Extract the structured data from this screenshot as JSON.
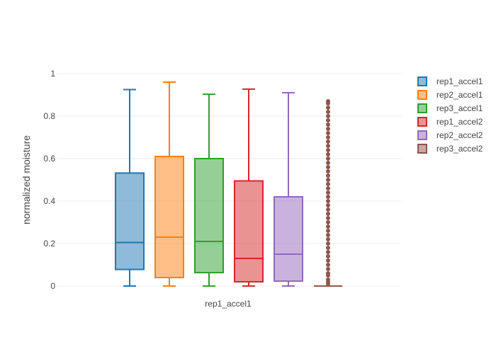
{
  "chart_data": {
    "type": "box",
    "title": "",
    "xlabel": "",
    "ylabel": "normalized moisture",
    "x_category": "rep1_accel1",
    "ylim": [
      0,
      1
    ],
    "y_ticks": [
      0,
      0.2,
      0.4,
      0.6,
      0.8,
      1
    ],
    "y_tick_labels": [
      "0",
      "0.2",
      "0.4",
      "0.6",
      "0.8",
      "1"
    ],
    "grid": true,
    "legend_position": "right",
    "series": [
      {
        "name": "rep1_accel1",
        "color": "#1f77b4",
        "min": 0,
        "q1": 0.078,
        "median": 0.205,
        "q3": 0.532,
        "max": 0.925
      },
      {
        "name": "rep2_accel1",
        "color": "#ff7f0e",
        "min": 0,
        "q1": 0.04,
        "median": 0.23,
        "q3": 0.61,
        "max": 0.96
      },
      {
        "name": "rep3_accel1",
        "color": "#2ca02c",
        "min": 0,
        "q1": 0.063,
        "median": 0.21,
        "q3": 0.6,
        "max": 0.903
      },
      {
        "name": "rep1_accel2",
        "color": "#d62728",
        "min": 0,
        "q1": 0.02,
        "median": 0.13,
        "q3": 0.495,
        "max": 0.927
      },
      {
        "name": "rep2_accel2",
        "color": "#9467bd",
        "min": 0,
        "q1": 0.023,
        "median": 0.15,
        "q3": 0.42,
        "max": 0.91
      },
      {
        "name": "rep3_accel2",
        "color": "#8c564b",
        "min": 0,
        "q1": 0,
        "median": 0,
        "q3": 0,
        "max": 0,
        "outliers": [
          0.01,
          0.02,
          0.03,
          0.05,
          0.06,
          0.08,
          0.1,
          0.12,
          0.14,
          0.16,
          0.18,
          0.2,
          0.22,
          0.24,
          0.26,
          0.28,
          0.3,
          0.32,
          0.34,
          0.36,
          0.38,
          0.4,
          0.42,
          0.44,
          0.46,
          0.48,
          0.5,
          0.52,
          0.54,
          0.56,
          0.58,
          0.6,
          0.62,
          0.64,
          0.66,
          0.68,
          0.7,
          0.72,
          0.74,
          0.76,
          0.78,
          0.8,
          0.82,
          0.84,
          0.86,
          0.87
        ]
      }
    ]
  }
}
